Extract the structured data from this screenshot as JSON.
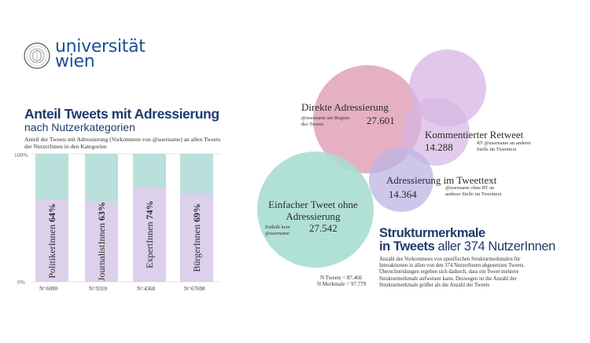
{
  "logo": {
    "line1": "universität",
    "line2": "wien"
  },
  "bar_chart": {
    "title": "Anteil Tweets mit Adressierung",
    "subtitle": "nach Nutzerkategorien",
    "description": "Anteil der Tweets mit Adressierung (Vorkommen von @username) an allen Tweets der NutzerInnen in den Kategorien",
    "y_top_label": "100%",
    "y_bottom_label": "0%",
    "fill_color": "#dcd0ea",
    "rest_color": "#b9e0da"
  },
  "bubble_chart": {
    "heading_bold": "Strukturmerkmale",
    "heading_line2_bold": "in Tweets",
    "heading_line2_rest": " aller 374 NutzerInnen",
    "description": "Anzahl des Vorkommens von spezifischen Strukturmerkmalen für Interaktionen in allen von den 374 NutzerInnen abgesetzten Tweets. Überschneidungen ergeben sich dadurch, dass ein Tweet mehrere Strukturmerkmale aufweisen kann. Deswegen ist die Anzahl der Strukturmerkmale größer als die Anzahl der Tweets",
    "n_tweets": "N Tweets = 87.466",
    "n_merkmale": "N Merkmale = 97.779"
  },
  "chart_data": [
    {
      "type": "bar",
      "title": "Anteil Tweets mit Adressierung",
      "subtitle": "nach Nutzerkategorien",
      "ylim": [
        0,
        100
      ],
      "categories": [
        "PolitikerInnen",
        "JournalistInnen",
        "ExpertInnen",
        "BürgerInnen"
      ],
      "values": [
        64,
        63,
        74,
        69
      ],
      "value_labels": [
        "64%",
        "63%",
        "74%",
        "69%"
      ],
      "n_labels": [
        "N=6090",
        "N=9310",
        "N=4368",
        "N=67698"
      ],
      "colors": [
        "#dcd0ea",
        "#b9e0da"
      ]
    },
    {
      "type": "bubble",
      "title": "Strukturmerkmale in Tweets aller 374 NutzerInnen",
      "items": [
        {
          "name": "Direkte Adressierung",
          "value": "27.601",
          "note": "@username am Beginn des Tweets",
          "color": "#e3a9bd"
        },
        {
          "name": "Kommentierter Retweet",
          "value": "14.288",
          "note": "RT @username an anderer Stelle im Tweettext",
          "color": "#d7b5e3"
        },
        {
          "name": "Adressierung im Tweettext",
          "value": "14.364",
          "note": "@username ohne RT an anderer Stelle im Tweettext",
          "color": "#bcb4e3"
        },
        {
          "name": "Einfacher Tweet ohne Adressierung",
          "value": "27.542",
          "note": "Enthält kein @username",
          "color": "#a9ddd3"
        }
      ]
    }
  ]
}
